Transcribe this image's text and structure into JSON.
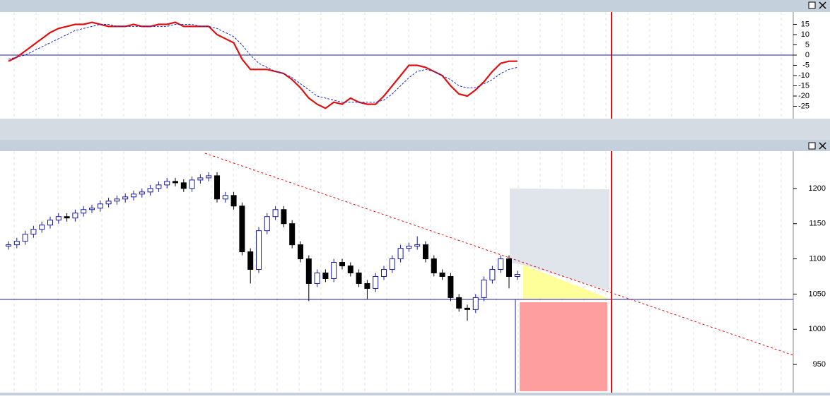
{
  "chart_data": [
    {
      "type": "line",
      "series": [
        {
          "color": "#e01010",
          "style": "solid",
          "values": [
            -3,
            -1,
            2,
            5,
            8,
            11,
            13,
            14,
            15,
            15,
            16,
            15,
            14,
            14,
            14,
            15,
            14,
            14,
            15,
            15,
            16,
            14,
            14,
            14,
            14,
            10,
            8,
            6,
            -2,
            -7,
            -7,
            -7,
            -8,
            -9,
            -12,
            -16,
            -21,
            -24,
            -26,
            -23,
            -24,
            -21,
            -23,
            -24,
            -24,
            -20,
            -15,
            -10,
            -5,
            -5,
            -6,
            -8,
            -10,
            -15,
            -19,
            -20,
            -17,
            -13,
            -8,
            -4,
            -3,
            -3
          ]
        },
        {
          "color": "#1a2ad0",
          "style": "dashed",
          "values": [
            -2,
            -1,
            0,
            2,
            4,
            6,
            8,
            10,
            12,
            13,
            14,
            15,
            15,
            14,
            14,
            14,
            14,
            14,
            14,
            14,
            15,
            15,
            15,
            14,
            14,
            13,
            11,
            9,
            5,
            0,
            -4,
            -6,
            -8,
            -9,
            -11,
            -14,
            -17,
            -20,
            -21,
            -22,
            -23,
            -23,
            -23,
            -23,
            -23,
            -22,
            -19,
            -15,
            -11,
            -8,
            -7,
            -8,
            -10,
            -12,
            -15,
            -16,
            -16,
            -14,
            -12,
            -9,
            -7,
            -6
          ]
        }
      ],
      "ylim": [
        -30,
        20
      ],
      "yticks": [
        15,
        10,
        5,
        0,
        -5,
        -10,
        -15,
        -20,
        -25
      ]
    },
    {
      "type": "candlestick",
      "open": [
        1118,
        1120,
        1125,
        1135,
        1142,
        1148,
        1155,
        1160,
        1158,
        1165,
        1170,
        1172,
        1178,
        1182,
        1185,
        1188,
        1192,
        1195,
        1200,
        1205,
        1210,
        1208,
        1200,
        1212,
        1215,
        1218,
        1185,
        1190,
        1175,
        1110,
        1085,
        1140,
        1160,
        1170,
        1150,
        1120,
        1100,
        1065,
        1080,
        1072,
        1095,
        1090,
        1080,
        1065,
        1058,
        1075,
        1085,
        1100,
        1115,
        1118,
        1120,
        1100,
        1080,
        1075,
        1045,
        1030,
        1028,
        1045,
        1070,
        1085,
        1100,
        1075
      ],
      "high": [
        1125,
        1130,
        1140,
        1147,
        1153,
        1160,
        1165,
        1165,
        1170,
        1175,
        1177,
        1183,
        1187,
        1190,
        1193,
        1197,
        1200,
        1205,
        1210,
        1215,
        1215,
        1213,
        1217,
        1220,
        1223,
        1223,
        1195,
        1195,
        1180,
        1115,
        1145,
        1165,
        1175,
        1175,
        1155,
        1125,
        1105,
        1085,
        1085,
        1100,
        1100,
        1095,
        1085,
        1070,
        1080,
        1090,
        1105,
        1120,
        1123,
        1132,
        1125,
        1105,
        1085,
        1080,
        1050,
        1035,
        1050,
        1075,
        1090,
        1105,
        1105,
        1083
      ],
      "low": [
        1113,
        1115,
        1120,
        1130,
        1137,
        1143,
        1150,
        1153,
        1153,
        1160,
        1165,
        1167,
        1173,
        1177,
        1180,
        1183,
        1187,
        1190,
        1195,
        1200,
        1203,
        1195,
        1195,
        1207,
        1210,
        1180,
        1180,
        1170,
        1105,
        1065,
        1080,
        1135,
        1155,
        1145,
        1115,
        1095,
        1040,
        1060,
        1067,
        1067,
        1085,
        1075,
        1060,
        1043,
        1053,
        1070,
        1080,
        1095,
        1110,
        1113,
        1095,
        1075,
        1070,
        1040,
        1025,
        1012,
        1023,
        1040,
        1065,
        1080,
        1058,
        1070
      ],
      "close": [
        1120,
        1125,
        1135,
        1142,
        1148,
        1155,
        1160,
        1158,
        1165,
        1170,
        1172,
        1178,
        1182,
        1185,
        1188,
        1192,
        1195,
        1200,
        1205,
        1210,
        1208,
        1200,
        1212,
        1215,
        1218,
        1185,
        1190,
        1175,
        1110,
        1085,
        1140,
        1160,
        1170,
        1150,
        1120,
        1100,
        1065,
        1080,
        1072,
        1095,
        1090,
        1080,
        1065,
        1058,
        1075,
        1085,
        1100,
        1115,
        1118,
        1120,
        1100,
        1080,
        1075,
        1045,
        1030,
        1028,
        1045,
        1070,
        1085,
        1100,
        1075,
        1078
      ],
      "up_color": "#1a1aa0",
      "down_color": "#000000",
      "ylim": [
        910,
        1252
      ],
      "yticks": [
        1200,
        1150,
        1100,
        1050,
        1000,
        950
      ]
    }
  ]
}
